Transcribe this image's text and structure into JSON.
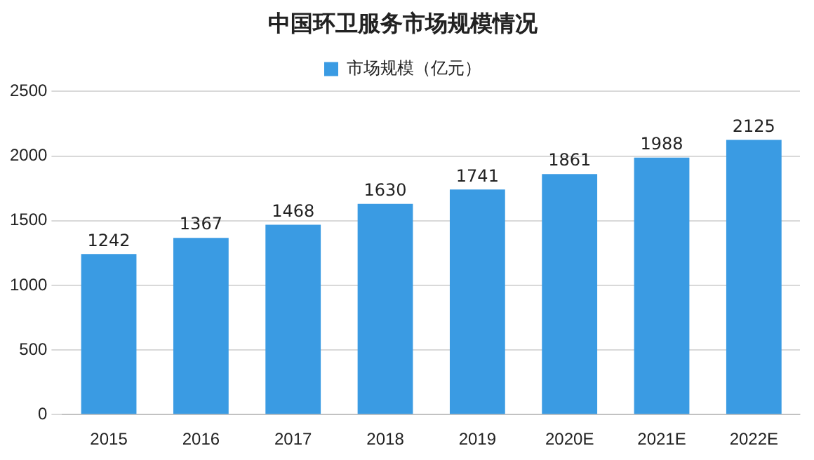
{
  "chart_data": {
    "type": "bar",
    "title": "中国环卫服务市场规模情况",
    "categories": [
      "2015",
      "2016",
      "2017",
      "2018",
      "2019",
      "2020E",
      "2021E",
      "2022E"
    ],
    "series": [
      {
        "name": "市场规模（亿元）",
        "color": "#3a9be3",
        "values": [
          1242,
          1367,
          1468,
          1630,
          1741,
          1861,
          1988,
          2125
        ]
      }
    ],
    "ylim": [
      0,
      2500
    ],
    "yticks": [
      0,
      500,
      1000,
      1500,
      2000,
      2500
    ],
    "grid": "y",
    "legend": "top",
    "data_labels": true
  }
}
